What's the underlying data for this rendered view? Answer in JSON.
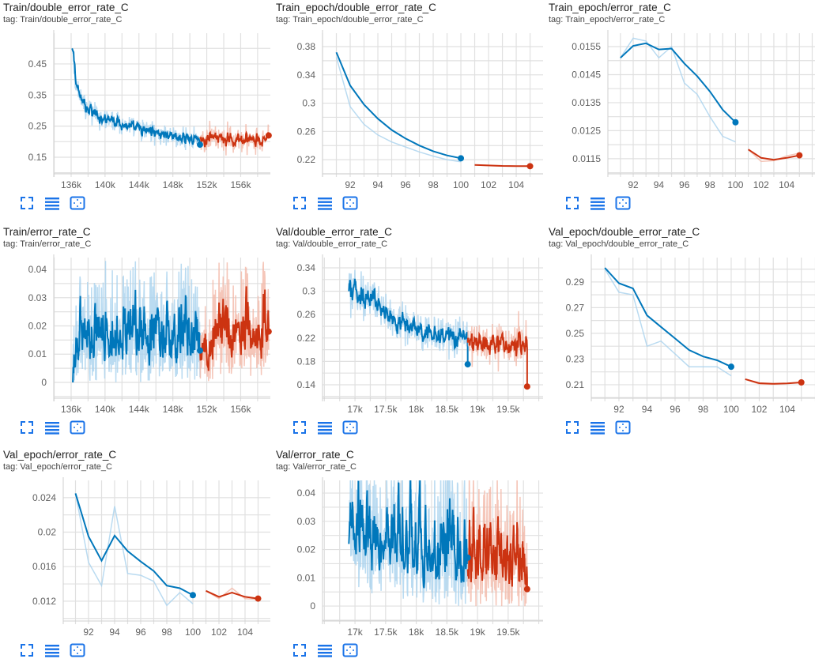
{
  "colors": {
    "blue": "#0077bb",
    "blue_raw": "#a9d2ee",
    "red": "#cc3311",
    "red_raw": "#f2b8a8",
    "icon": "#1a73e8",
    "grid": "#e0e0e0"
  },
  "card_actions": [
    {
      "icon": "fullscreen-icon",
      "label": "Toggle full size"
    },
    {
      "icon": "lines-icon",
      "label": "Toggle log scale"
    },
    {
      "icon": "fit-domain-icon",
      "label": "Fit domain to data"
    }
  ],
  "charts": [
    {
      "title": "Train/double_error_rate_C",
      "tag": "tag: Train/double_error_rate_C",
      "chart_data": {
        "type": "line",
        "xlim": [
          133.95,
          159.5
        ],
        "ylim": [
          0.0966,
          0.549
        ],
        "xticks": [
          {
            "v": 136,
            "label": "136k"
          },
          {
            "v": 140,
            "label": "140k"
          },
          {
            "v": 144,
            "label": "144k"
          },
          {
            "v": 148,
            "label": "148k"
          },
          {
            "v": 152,
            "label": "152k"
          },
          {
            "v": 156,
            "label": "156k"
          }
        ],
        "yticks": [
          {
            "v": 0.15,
            "label": "0.15"
          },
          {
            "v": 0.25,
            "label": "0.25"
          },
          {
            "v": 0.35,
            "label": "0.35"
          },
          {
            "v": 0.45,
            "label": "0.45"
          }
        ],
        "series": [
          {
            "name": "run-blue",
            "color": "blue",
            "kind": "noisy",
            "n": 320,
            "amp": 0.03,
            "anchors": [
              [
                136.1,
                0.5
              ],
              [
                136.5,
                0.39
              ],
              [
                137.5,
                0.31
              ],
              [
                140,
                0.27
              ],
              [
                144,
                0.24
              ],
              [
                148,
                0.215
              ],
              [
                151.2,
                0.205
              ]
            ]
          },
          {
            "name": "run-red",
            "color": "red",
            "kind": "noisy",
            "n": 170,
            "amp": 0.035,
            "anchors": [
              [
                151.2,
                0.21
              ],
              [
                159.3,
                0.21
              ]
            ],
            "end": 0.22
          }
        ]
      }
    },
    {
      "title": "Train_epoch/double_error_rate_C",
      "tag": "tag: Train_epoch/double_error_rate_C",
      "chart_data": {
        "type": "line",
        "xlim": [
          90.0,
          105.94
        ],
        "ylim": [
          0.2,
          0.399
        ],
        "xticks": [
          {
            "v": 92,
            "label": "92"
          },
          {
            "v": 94,
            "label": "94"
          },
          {
            "v": 96,
            "label": "96"
          },
          {
            "v": 98,
            "label": "98"
          },
          {
            "v": 100,
            "label": "100"
          },
          {
            "v": 102,
            "label": "102"
          },
          {
            "v": 104,
            "label": "104"
          }
        ],
        "yticks": [
          {
            "v": 0.22,
            "label": "0.22"
          },
          {
            "v": 0.26,
            "label": "0.26"
          },
          {
            "v": 0.3,
            "label": "0.3"
          },
          {
            "v": 0.34,
            "label": "0.34"
          },
          {
            "v": 0.38,
            "label": "0.38"
          }
        ],
        "series": [
          {
            "name": "run-blue",
            "color": "blue",
            "kind": "points",
            "x": [
              91,
              92,
              93,
              94,
              95,
              96,
              97,
              98,
              99,
              100
            ],
            "smoothed": [
              0.372,
              0.325,
              0.298,
              0.278,
              0.262,
              0.25,
              0.24,
              0.232,
              0.226,
              0.222
            ],
            "raw": [
              0.365,
              0.295,
              0.27,
              0.255,
              0.245,
              0.238,
              0.231,
              0.225,
              0.22,
              0.217
            ]
          },
          {
            "name": "run-red",
            "color": "red",
            "kind": "points",
            "x": [
              101,
              102,
              103,
              104,
              105
            ],
            "smoothed": [
              0.2125,
              0.2118,
              0.2112,
              0.211,
              0.2108
            ],
            "raw": [
              0.2125,
              0.2115,
              0.211,
              0.2108,
              0.2107
            ]
          }
        ]
      }
    },
    {
      "title": "Train_epoch/error_rate_C",
      "tag": "tag: Train_epoch/error_rate_C",
      "chart_data": {
        "type": "line",
        "xlim": [
          90.02,
          106.28
        ],
        "ylim": [
          0.01096,
          0.01598
        ],
        "xticks": [
          {
            "v": 92,
            "label": "92"
          },
          {
            "v": 94,
            "label": "94"
          },
          {
            "v": 96,
            "label": "96"
          },
          {
            "v": 98,
            "label": "98"
          },
          {
            "v": 100,
            "label": "100"
          },
          {
            "v": 102,
            "label": "102"
          },
          {
            "v": 104,
            "label": "104"
          }
        ],
        "yticks": [
          {
            "v": 0.0115,
            "label": "0.0115"
          },
          {
            "v": 0.0125,
            "label": "0.0125"
          },
          {
            "v": 0.0135,
            "label": "0.0135"
          },
          {
            "v": 0.0145,
            "label": "0.0145"
          },
          {
            "v": 0.0155,
            "label": "0.0155"
          }
        ],
        "series": [
          {
            "name": "run-blue",
            "color": "blue",
            "kind": "points",
            "x": [
              91,
              92,
              93,
              94,
              95,
              96,
              97,
              98,
              99,
              100
            ],
            "smoothed": [
              0.0151,
              0.01553,
              0.01562,
              0.0154,
              0.01543,
              0.0149,
              0.01445,
              0.0139,
              0.01325,
              0.0128
            ],
            "raw": [
              0.0151,
              0.0158,
              0.0157,
              0.0151,
              0.0155,
              0.0142,
              0.0138,
              0.013,
              0.0123,
              0.0121
            ]
          },
          {
            "name": "run-red",
            "color": "red",
            "kind": "points",
            "x": [
              101,
              102,
              103,
              104,
              105
            ],
            "smoothed": [
              0.01183,
              0.01153,
              0.01146,
              0.01153,
              0.01162
            ],
            "raw": [
              0.01183,
              0.0114,
              0.01143,
              0.0116,
              0.0117
            ]
          }
        ]
      }
    },
    {
      "title": "Train/error_rate_C",
      "tag": "tag: Train/error_rate_C",
      "chart_data": {
        "type": "line",
        "xlim": [
          133.95,
          159.5
        ],
        "ylim": [
          -0.0056,
          0.0442
        ],
        "xticks": [
          {
            "v": 136,
            "label": "136k"
          },
          {
            "v": 140,
            "label": "140k"
          },
          {
            "v": 144,
            "label": "144k"
          },
          {
            "v": 148,
            "label": "148k"
          },
          {
            "v": 152,
            "label": "152k"
          },
          {
            "v": 156,
            "label": "156k"
          }
        ],
        "yticks": [
          {
            "v": 0,
            "label": "0"
          },
          {
            "v": 0.01,
            "label": "0.01"
          },
          {
            "v": 0.02,
            "label": "0.02"
          },
          {
            "v": 0.03,
            "label": "0.03"
          },
          {
            "v": 0.04,
            "label": "0.04"
          }
        ],
        "series": [
          {
            "name": "run-blue",
            "color": "blue",
            "kind": "noisy",
            "spiky": true,
            "n": 320,
            "amp": 0.014,
            "anchors": [
              [
                136.2,
                0.0
              ],
              [
                136.6,
                0.012
              ],
              [
                151.2,
                0.011
              ]
            ]
          },
          {
            "name": "run-red",
            "color": "red",
            "kind": "noisy",
            "spiky": true,
            "n": 170,
            "amp": 0.014,
            "anchors": [
              [
                151.2,
                0.012
              ],
              [
                159.3,
                0.013
              ]
            ],
            "end": 0.018
          }
        ]
      }
    },
    {
      "title": "Val/double_error_rate_C",
      "tag": "tag: Val/double_error_rate_C",
      "chart_data": {
        "type": "line",
        "xlim": [
          16.47,
          20.07
        ],
        "ylim": [
          0.117,
          0.3576
        ],
        "xticks": [
          {
            "v": 17,
            "label": "17k"
          },
          {
            "v": 17.5,
            "label": "17.5k"
          },
          {
            "v": 18,
            "label": "18k"
          },
          {
            "v": 18.5,
            "label": "18.5k"
          },
          {
            "v": 19,
            "label": "19k"
          },
          {
            "v": 19.5,
            "label": "19.5k"
          }
        ],
        "yticks": [
          {
            "v": 0.14,
            "label": "0.14"
          },
          {
            "v": 0.18,
            "label": "0.18"
          },
          {
            "v": 0.22,
            "label": "0.22"
          },
          {
            "v": 0.26,
            "label": "0.26"
          },
          {
            "v": 0.3,
            "label": "0.3"
          },
          {
            "v": 0.34,
            "label": "0.34"
          }
        ],
        "series": [
          {
            "name": "run-blue",
            "color": "blue",
            "kind": "noisy",
            "n": 300,
            "amp": 0.03,
            "anchors": [
              [
                16.9,
                0.3
              ],
              [
                17.3,
                0.285
              ],
              [
                17.6,
                0.25
              ],
              [
                18.0,
                0.232
              ],
              [
                18.84,
                0.215
              ]
            ],
            "end": 0.175
          },
          {
            "name": "run-red",
            "color": "red",
            "kind": "noisy",
            "n": 160,
            "amp": 0.033,
            "anchors": [
              [
                18.84,
                0.212
              ],
              [
                19.81,
                0.21
              ]
            ],
            "end": 0.137
          }
        ]
      }
    },
    {
      "title": "Val_epoch/double_error_rate_C",
      "tag": "tag: Val_epoch/double_error_rate_C",
      "chart_data": {
        "type": "line",
        "xlim": [
          90.03,
          106.03
        ],
        "ylim": [
          0.1995,
          0.309
        ],
        "xticks": [
          {
            "v": 92,
            "label": "92"
          },
          {
            "v": 94,
            "label": "94"
          },
          {
            "v": 96,
            "label": "96"
          },
          {
            "v": 98,
            "label": "98"
          },
          {
            "v": 100,
            "label": "100"
          },
          {
            "v": 102,
            "label": "102"
          },
          {
            "v": 104,
            "label": "104"
          }
        ],
        "yticks": [
          {
            "v": 0.21,
            "label": "0.21"
          },
          {
            "v": 0.23,
            "label": "0.23"
          },
          {
            "v": 0.25,
            "label": "0.25"
          },
          {
            "v": 0.27,
            "label": "0.27"
          },
          {
            "v": 0.29,
            "label": "0.29"
          }
        ],
        "series": [
          {
            "name": "run-blue",
            "color": "blue",
            "kind": "points",
            "x": [
              91,
              92,
              93,
              94,
              95,
              96,
              97,
              98,
              99,
              100
            ],
            "smoothed": [
              0.301,
              0.289,
              0.285,
              0.264,
              0.255,
              0.246,
              0.237,
              0.232,
              0.229,
              0.224
            ],
            "raw": [
              0.3,
              0.282,
              0.28,
              0.24,
              0.244,
              0.234,
              0.224,
              0.224,
              0.224,
              0.217
            ]
          },
          {
            "name": "run-red",
            "color": "red",
            "kind": "points",
            "x": [
              101,
              102,
              103,
              104,
              105
            ],
            "smoothed": [
              0.2143,
              0.2112,
              0.2107,
              0.211,
              0.2118
            ],
            "raw": [
              0.2143,
              0.2105,
              0.2103,
              0.211,
              0.212
            ]
          }
        ]
      }
    },
    {
      "title": "Val_epoch/error_rate_C",
      "tag": "tag: Val_epoch/error_rate_C",
      "chart_data": {
        "type": "line",
        "xlim": [
          90.06,
          105.94
        ],
        "ylim": [
          0.0097,
          0.026
        ],
        "xticks": [
          {
            "v": 92,
            "label": "92"
          },
          {
            "v": 94,
            "label": "94"
          },
          {
            "v": 96,
            "label": "96"
          },
          {
            "v": 98,
            "label": "98"
          },
          {
            "v": 100,
            "label": "100"
          },
          {
            "v": 102,
            "label": "102"
          },
          {
            "v": 104,
            "label": "104"
          }
        ],
        "yticks": [
          {
            "v": 0.012,
            "label": "0.012"
          },
          {
            "v": 0.016,
            "label": "0.016"
          },
          {
            "v": 0.02,
            "label": "0.02"
          },
          {
            "v": 0.024,
            "label": "0.024"
          }
        ],
        "series": [
          {
            "name": "run-blue",
            "color": "blue",
            "kind": "points",
            "x": [
              91,
              92,
              93,
              94,
              95,
              96,
              97,
              98,
              99,
              100
            ],
            "smoothed": [
              0.0245,
              0.0195,
              0.0167,
              0.0196,
              0.0178,
              0.0166,
              0.0155,
              0.0138,
              0.0135,
              0.0127
            ],
            "raw": [
              0.0245,
              0.0165,
              0.0138,
              0.023,
              0.0152,
              0.015,
              0.0143,
              0.0115,
              0.013,
              0.0117
            ]
          },
          {
            "name": "run-red",
            "color": "red",
            "kind": "points",
            "x": [
              101,
              102,
              103,
              104,
              105
            ],
            "smoothed": [
              0.0132,
              0.0125,
              0.013,
              0.0125,
              0.0123
            ],
            "raw": [
              0.0132,
              0.0123,
              0.0135,
              0.0123,
              0.0122
            ]
          }
        ]
      }
    },
    {
      "title": "Val/error_rate_C",
      "tag": "tag: Val/error_rate_C",
      "chart_data": {
        "type": "line",
        "xlim": [
          16.47,
          20.07
        ],
        "ylim": [
          -0.0053,
          0.0445
        ],
        "xticks": [
          {
            "v": 17,
            "label": "17k"
          },
          {
            "v": 17.5,
            "label": "17.5k"
          },
          {
            "v": 18,
            "label": "18k"
          },
          {
            "v": 18.5,
            "label": "18.5k"
          },
          {
            "v": 19,
            "label": "19k"
          },
          {
            "v": 19.5,
            "label": "19.5k"
          }
        ],
        "yticks": [
          {
            "v": 0,
            "label": "0"
          },
          {
            "v": 0.01,
            "label": "0.01"
          },
          {
            "v": 0.02,
            "label": "0.02"
          },
          {
            "v": 0.03,
            "label": "0.03"
          },
          {
            "v": 0.04,
            "label": "0.04"
          }
        ],
        "series": [
          {
            "name": "run-blue",
            "color": "blue",
            "kind": "noisy",
            "spiky": true,
            "n": 300,
            "amp": 0.018,
            "anchors": [
              [
                16.9,
                0.022
              ],
              [
                17.3,
                0.018
              ],
              [
                18.84,
                0.014
              ]
            ]
          },
          {
            "name": "run-red",
            "color": "red",
            "kind": "noisy",
            "spiky": true,
            "n": 160,
            "amp": 0.016,
            "anchors": [
              [
                18.84,
                0.013
              ],
              [
                19.81,
                0.011
              ]
            ],
            "end": 0.006
          }
        ]
      }
    }
  ]
}
